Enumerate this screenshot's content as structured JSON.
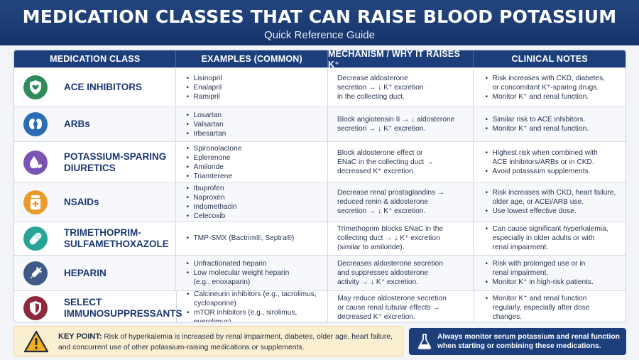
{
  "header": {
    "title": "MEDICATION CLASSES THAT CAN RAISE BLOOD POTASSIUM",
    "subtitle": "Quick Reference Guide"
  },
  "table": {
    "columns": [
      "MEDICATION CLASS",
      "EXAMPLES (COMMON)",
      "MECHANISM / WHY IT RAISES K⁺",
      "CLINICAL NOTES"
    ],
    "rows": [
      {
        "class_name": "ACE INHIBITORS",
        "icon": "heart-shield-icon",
        "icon_color": "#2f8c5a",
        "examples": [
          "Lisinopril",
          "Enalapril",
          "Ramipril"
        ],
        "mechanism": "Decrease aldosterone\nsecretion → ↓ K⁺ excretion\nin the collecting duct.",
        "notes": [
          "Risk increases with CKD, diabetes,\nor concomitant K⁺-sparing drugs.",
          "Monitor K⁺ and renal function."
        ]
      },
      {
        "class_name": "ARBs",
        "icon": "kidneys-icon",
        "icon_color": "#2a6cb5",
        "examples": [
          "Losartan",
          "Valsartan",
          "Irbesartan"
        ],
        "mechanism": "Block angiotensin II → ↓ aldosterone\nsecretion → ↓ K⁺ excretion.",
        "notes": [
          "Similar risk to ACE inhibitors.",
          "Monitor K⁺ and renal function."
        ]
      },
      {
        "class_name": "POTASSIUM-SPARING\nDIURETICS",
        "icon": "droplet-pills-icon",
        "icon_color": "#7a53b3",
        "examples": [
          "Spironolactone",
          "Eplerenone",
          "Amiloride",
          "Triamterene"
        ],
        "mechanism": "Block aldosterone effect or\nENaC in the collecting duct →\ndecreased K⁺ excretion.",
        "notes": [
          "Highest risk when combined with\nACE inhibitors/ARBs or in CKD.",
          "Avoid potassium supplements."
        ]
      },
      {
        "class_name": "NSAIDs",
        "icon": "pill-bottle-icon",
        "icon_color": "#e99a2a",
        "examples": [
          "Ibuprofen",
          "Naproxen",
          "Indomethacin",
          "Celecoxib"
        ],
        "mechanism": "Decrease renal prostaglandins →\nreduced renin & aldosterone\nsecretion → ↓ K⁺ excretion.",
        "notes": [
          "Risk increases with CKD, heart failure,\nolder age, or ACEi/ARB use.",
          "Use lowest effective dose."
        ]
      },
      {
        "class_name": "TRIMETHOPRIM-\nSULFAMETHOXAZOLE",
        "icon": "capsule-icon",
        "icon_color": "#27a397",
        "examples": [
          "TMP-SMX (Bactrim®, Septra®)"
        ],
        "mechanism": "Trimethoprim blocks ENaC in the\ncollecting duct → ↓ K⁺ excretion\n(similar to amiloride).",
        "notes": [
          "Can cause significant hyperkalemia,\nespecially in older adults or with\nrenal impairment."
        ]
      },
      {
        "class_name": "HEPARIN",
        "icon": "syringe-icon",
        "icon_color": "#3f5a86",
        "examples": [
          "Unfractionated heparin",
          "Low molecular weight heparin\n(e.g., enoxaparin)"
        ],
        "mechanism": "Decreases aldosterone secretion\nand suppresses aldosterone\nactivity → ↓ K⁺ excretion.",
        "notes": [
          "Risk with prolonged use or in\nrenal impairment.",
          "Monitor K⁺ in high-risk patients."
        ]
      },
      {
        "class_name": "SELECT\nIMMUNOSUPPRESSANTS",
        "icon": "shield-icon",
        "icon_color": "#8c2a3c",
        "examples": [
          "Calcineurin inhibitors (e.g., tacrolimus,\ncyclosporine)",
          "mTOR inhibitors (e.g., sirolimus,\neverolimus)"
        ],
        "mechanism": "May reduce aldosterone secretion\nor cause renal tubular effects →\ndecreased K⁺ excretion.",
        "notes": [
          "Monitor K⁺ and renal function\nregularly, especially after dose\nchanges."
        ]
      }
    ]
  },
  "key_point": {
    "label": "KEY POINT:",
    "text": "Risk of hyperkalemia is increased by renal impairment, diabetes, older age, heart failure, and concurrent use of other potassium-raising medications or supplements."
  },
  "monitor_box": {
    "text": "Always monitor serum potassium and renal function\nwhen starting or combining these medications."
  }
}
